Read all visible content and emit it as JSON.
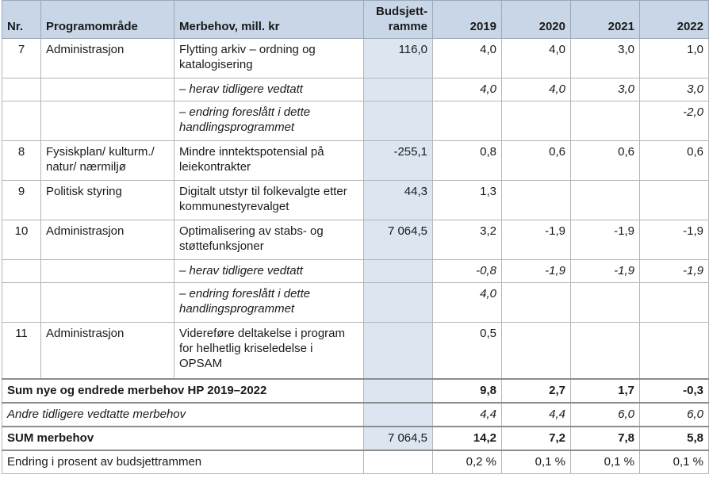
{
  "headers": {
    "nr": "Nr.",
    "program": "Programområde",
    "merbehov": "Merbehov, mill. kr",
    "budsjett_line1": "Budsjett-",
    "budsjett_line2": "ramme",
    "y2019": "2019",
    "y2020": "2020",
    "y2021": "2021",
    "y2022": "2022"
  },
  "rows": [
    {
      "nr": "7",
      "program": "Administrasjon",
      "desc": "Flytting arkiv – ordning og katalogisering",
      "budget": "116,0",
      "y2019": "4,0",
      "y2020": "4,0",
      "y2021": "3,0",
      "y2022": "1,0"
    },
    {
      "nr": "",
      "program": "",
      "desc": "– herav tidligere vedtatt",
      "budget": "",
      "y2019": "4,0",
      "y2020": "4,0",
      "y2021": "3,0",
      "y2022": "3,0"
    },
    {
      "nr": "",
      "program": "",
      "desc": "– endring foreslått i dette handlingsprogrammet",
      "budget": "",
      "y2019": "",
      "y2020": "",
      "y2021": "",
      "y2022": "-2,0"
    },
    {
      "nr": "8",
      "program": "Fysiskplan/ kulturm./ natur/ nærmiljø",
      "desc": "Mindre inntektspotensial på leiekontrakter",
      "budget": "-255,1",
      "y2019": "0,8",
      "y2020": "0,6",
      "y2021": "0,6",
      "y2022": "0,6"
    },
    {
      "nr": "9",
      "program": "Politisk styring",
      "desc": "Digitalt utstyr til folkevalgte etter kommunestyrevalget",
      "budget": "44,3",
      "y2019": "1,3",
      "y2020": "",
      "y2021": "",
      "y2022": ""
    },
    {
      "nr": "10",
      "program": "Administrasjon",
      "desc": "Optimalisering av stabs- og støttefunksjoner",
      "budget": "7 064,5",
      "y2019": "3,2",
      "y2020": "-1,9",
      "y2021": "-1,9",
      "y2022": "-1,9"
    },
    {
      "nr": "",
      "program": "",
      "desc": "– herav tidligere vedtatt",
      "budget": "",
      "y2019": "-0,8",
      "y2020": "-1,9",
      "y2021": "-1,9",
      "y2022": "-1,9"
    },
    {
      "nr": "",
      "program": "",
      "desc": "– endring foreslått i dette handlingsprogrammet",
      "budget": "",
      "y2019": "4,0",
      "y2020": "",
      "y2021": "",
      "y2022": ""
    },
    {
      "nr": "11",
      "program": "Administrasjon",
      "desc": "Videreføre deltakelse i program for helhetlig kriseledelse i OPSAM",
      "budget": "",
      "y2019": "0,5",
      "y2020": "",
      "y2021": "",
      "y2022": ""
    }
  ],
  "summary": [
    {
      "label": "Sum nye og endrede merbehov HP 2019–2022",
      "budget": "",
      "y2019": "9,8",
      "y2020": "2,7",
      "y2021": "1,7",
      "y2022": "-0,3"
    },
    {
      "label": "Andre tidligere vedtatte merbehov",
      "budget": "",
      "y2019": "4,4",
      "y2020": "4,4",
      "y2021": "6,0",
      "y2022": "6,0"
    },
    {
      "label": "SUM merbehov",
      "budget": "7 064,5",
      "y2019": "14,2",
      "y2020": "7,2",
      "y2021": "7,8",
      "y2022": "5,8"
    },
    {
      "label": "Endring i prosent av budsjettrammen",
      "budget": "",
      "y2019": "0,2 %",
      "y2020": "0,1 %",
      "y2021": "0,1 %",
      "y2022": "0,1 %"
    }
  ]
}
